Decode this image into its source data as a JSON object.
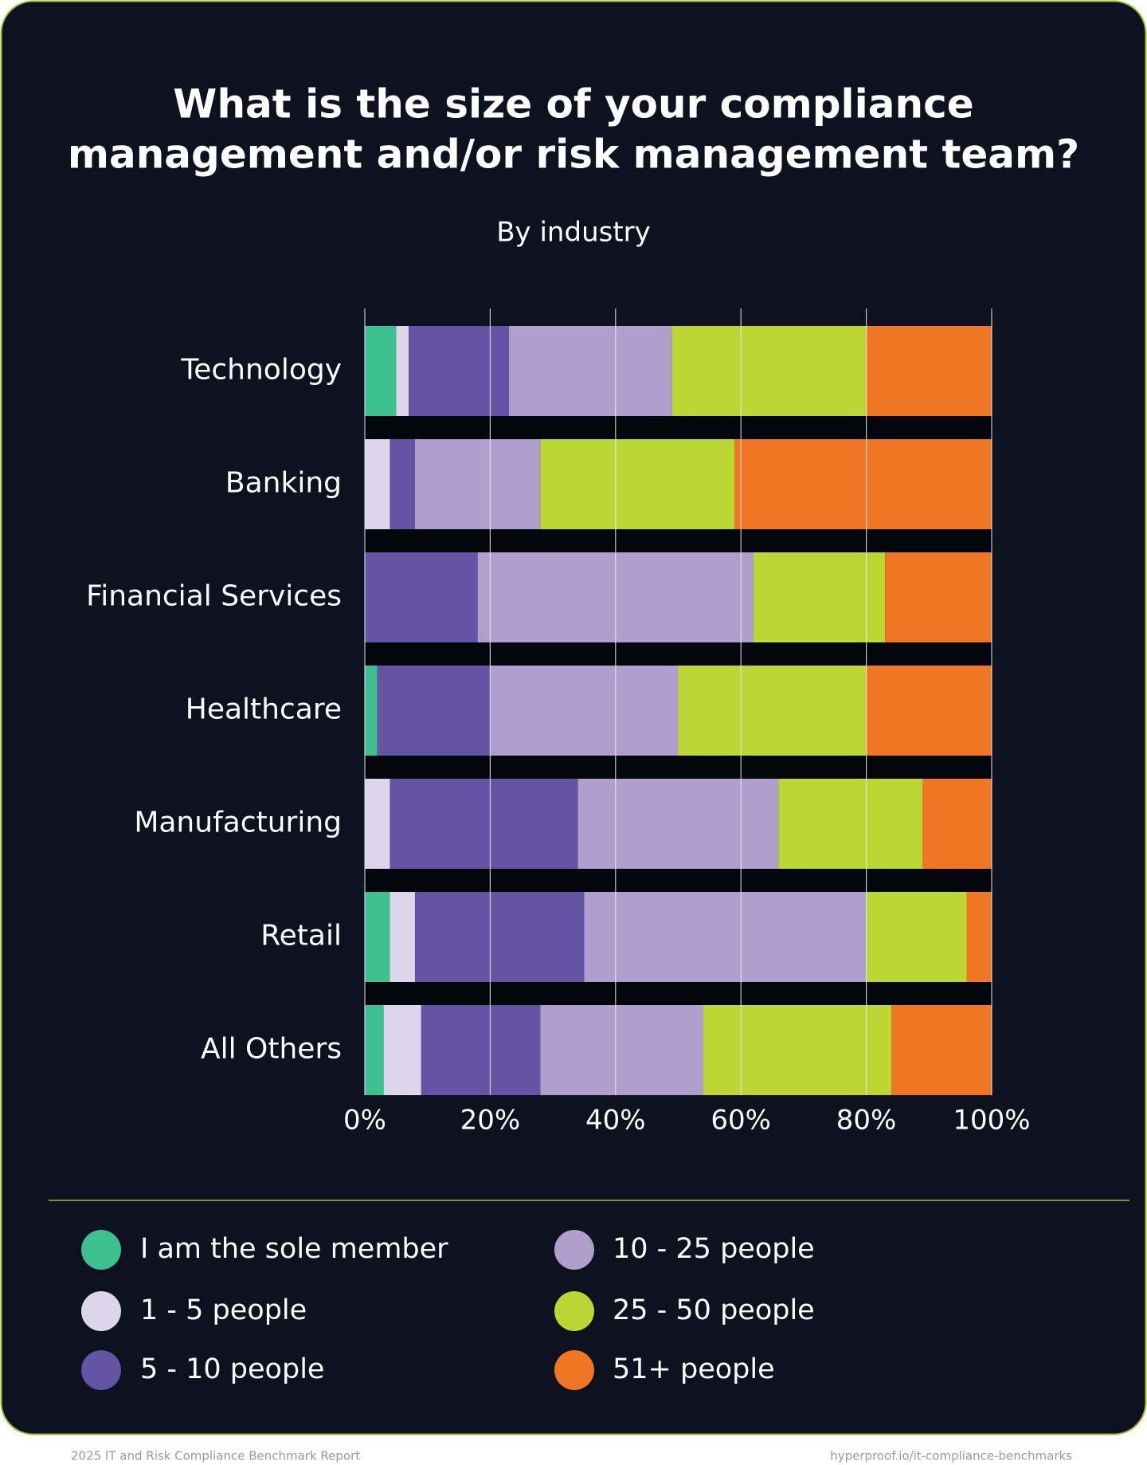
{
  "chart_data": {
    "type": "stacked-bar-horizontal",
    "title": [
      "What is the size of your compliance",
      "management and/or risk management team?"
    ],
    "subtitle": "By industry",
    "categories": [
      "Technology",
      "Banking",
      "Financial Services",
      "Healthcare",
      "Manufacturing",
      "Retail",
      "All Others"
    ],
    "series": [
      {
        "name": "I am the sole member",
        "color": "#3dbf8f",
        "values": [
          5,
          0,
          0,
          2,
          0,
          4,
          3
        ]
      },
      {
        "name": "1 - 5 people",
        "color": "#dcd6ea",
        "values": [
          2,
          4,
          0,
          0,
          4,
          4,
          6
        ]
      },
      {
        "name": "5 - 10 people",
        "color": "#6454a6",
        "values": [
          16,
          4,
          18,
          18,
          30,
          27,
          19
        ]
      },
      {
        "name": "10 - 25 people",
        "color": "#b09fcd",
        "values": [
          26,
          20,
          44,
          30,
          32,
          45,
          26
        ]
      },
      {
        "name": "25 - 50 people",
        "color": "#bcd634",
        "values": [
          31,
          31,
          21,
          30,
          23,
          16,
          30
        ]
      },
      {
        "name": "51+ people",
        "color": "#f07625",
        "values": [
          20,
          41,
          17,
          20,
          11,
          4,
          16
        ]
      }
    ],
    "xlim": [
      0,
      100
    ],
    "xticks": [
      {
        "value": 0,
        "label": "0%"
      },
      {
        "value": 20,
        "label": "20%"
      },
      {
        "value": 40,
        "label": "40%"
      },
      {
        "value": 60,
        "label": "60%"
      },
      {
        "value": 80,
        "label": "80%"
      },
      {
        "value": 100,
        "label": "100%"
      }
    ],
    "grid": true
  },
  "footer": {
    "left": "2025 IT and Risk Compliance Benchmark Report",
    "right": "hyperproof.io/it-compliance-benchmarks"
  }
}
